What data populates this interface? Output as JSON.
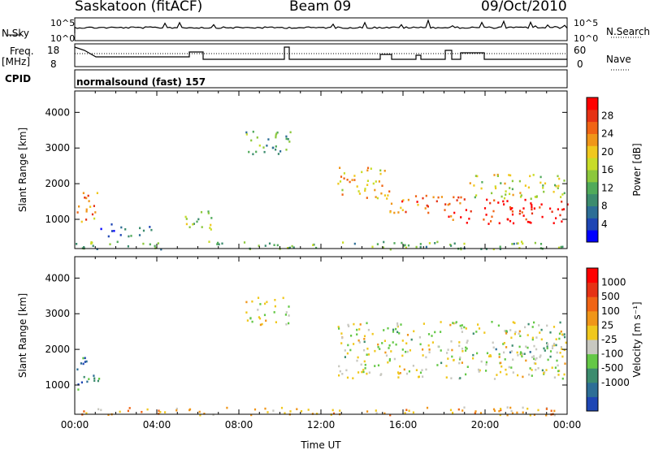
{
  "header": {
    "station": "Saskatoon (fitACF)",
    "beam": "Beam 09",
    "date": "09/Oct/2010"
  },
  "strip_labels": {
    "nsky": "N.Sky",
    "nsky_ticks": [
      "10^5",
      "10^0"
    ],
    "freq": "Freq.",
    "freq_unit": "[MHz]",
    "freq_ticks": [
      "18",
      "8"
    ],
    "cpid": "CPID",
    "nsearch": "N.Search",
    "nsearch_ticks": [
      "10^5",
      "10^0"
    ],
    "nave": "Nave",
    "nave_ticks": [
      "60",
      "0"
    ],
    "cpid_text": "normalsound (fast) 157"
  },
  "chart_data": [
    {
      "type": "heatmap",
      "panel": "power",
      "ylabel": "Slant Range [km]",
      "x_ticks": [
        "00:00",
        "04:00",
        "08:00",
        "12:00",
        "16:00",
        "20:00",
        "00:00"
      ],
      "y_ticks": [
        "1000",
        "2000",
        "3000",
        "4000"
      ],
      "ylim": [
        180,
        4600
      ],
      "colorbar": {
        "label": "Power [dB]",
        "ticks": [
          "4",
          "8",
          "12",
          "16",
          "20",
          "24",
          "28"
        ],
        "colors": [
          "#0000ff",
          "#1e46b4",
          "#2d6e96",
          "#3c8c6e",
          "#50aa5a",
          "#8cc83c",
          "#c8dc28",
          "#f0c81e",
          "#f09619",
          "#f06414",
          "#e63214",
          "#ff0000"
        ]
      },
      "regions": [
        {
          "t0": 0.0,
          "t1": 1.1,
          "r0": 900,
          "r1": 1800,
          "level": 0.75
        },
        {
          "t0": 1.2,
          "t1": 3.8,
          "r0": 550,
          "r1": 900,
          "level": 0.2
        },
        {
          "t0": 5.2,
          "t1": 6.8,
          "r0": 700,
          "r1": 1300,
          "level": 0.45
        },
        {
          "t0": 8.3,
          "t1": 10.5,
          "r0": 2700,
          "r1": 3500,
          "level": 0.35
        },
        {
          "t0": 12.8,
          "t1": 15.5,
          "r0": 1600,
          "r1": 2500,
          "level": 0.65
        },
        {
          "t0": 15.3,
          "t1": 18.5,
          "r0": 1200,
          "r1": 1700,
          "level": 0.8
        },
        {
          "t0": 18.0,
          "t1": 19.0,
          "r0": 1000,
          "r1": 1700,
          "level": 0.85
        },
        {
          "t0": 19.0,
          "t1": 24.0,
          "r0": 900,
          "r1": 1600,
          "level": 0.95
        },
        {
          "t0": 19.2,
          "t1": 24.0,
          "r0": 1600,
          "r1": 2300,
          "level": 0.55
        },
        {
          "t0": 0.0,
          "t1": 24.0,
          "r0": 180,
          "r1": 400,
          "level": 0.4
        }
      ]
    },
    {
      "type": "heatmap",
      "panel": "velocity",
      "ylabel": "Slant Range [km]",
      "xlabel": "Time UT",
      "x_ticks": [
        "00:00",
        "04:00",
        "08:00",
        "12:00",
        "16:00",
        "20:00",
        "00:00"
      ],
      "y_ticks": [
        "1000",
        "2000",
        "3000",
        "4000"
      ],
      "ylim": [
        180,
        4600
      ],
      "colorbar": {
        "label": "Velocity [m s⁻¹]",
        "ticks": [
          "1000",
          "500",
          "100",
          "25",
          "-25",
          "-100",
          "-500",
          "-1000"
        ],
        "colors": [
          "#1e46b4",
          "#2d6e96",
          "#3c8c6e",
          "#64c846",
          "#c8c8c0",
          "#f0c81e",
          "#f09619",
          "#f06414",
          "#e63214",
          "#ff0000"
        ]
      },
      "regions": [
        {
          "t0": 0.0,
          "t1": 1.2,
          "r0": 900,
          "r1": 1800,
          "level": 0.2
        },
        {
          "t0": 8.3,
          "t1": 10.5,
          "r0": 2700,
          "r1": 3500,
          "level": 0.45
        },
        {
          "t0": 12.8,
          "t1": 24.0,
          "r0": 1200,
          "r1": 2800,
          "level": 0.45
        },
        {
          "t0": 20.0,
          "t1": 23.5,
          "r0": 1800,
          "r1": 2200,
          "level": 0.3
        },
        {
          "t0": 0.0,
          "t1": 24.0,
          "r0": 180,
          "r1": 400,
          "level": 0.6
        }
      ]
    }
  ]
}
